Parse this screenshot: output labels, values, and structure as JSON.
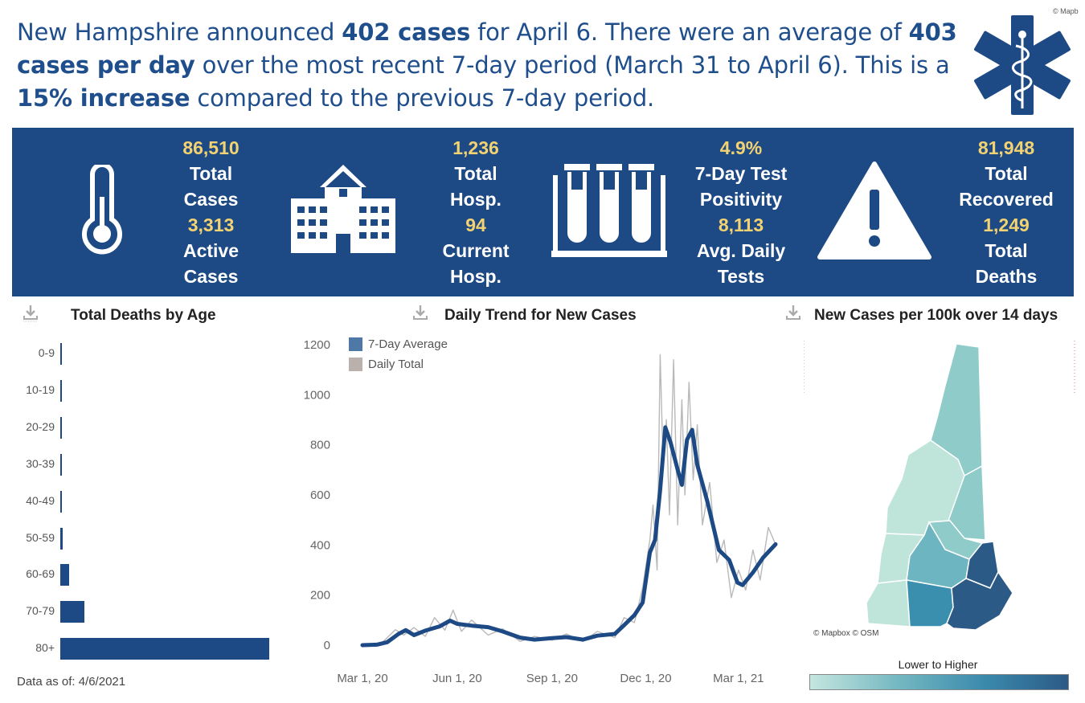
{
  "copyright": "© Mapb",
  "headline": {
    "p1": "New Hampshire announced ",
    "b1": "402 cases",
    "p2": " for April 6. There were an average of ",
    "b2": "403 cases per day",
    "p3": " over the most recent 7-day period (March 31 to April 6). This is a ",
    "b3": "15% increase",
    "p4": " compared to the previous 7-day period."
  },
  "icons": {
    "medical": "star-of-life-icon",
    "thermometer": "thermometer-icon",
    "hospital": "hospital-icon",
    "tubes": "test-tubes-icon",
    "warning": "warning-icon",
    "download": "download-icon"
  },
  "stats": {
    "total_cases": "86,510",
    "total_cases_label1": "Total",
    "total_cases_label2": "Cases",
    "active_cases": "3,313",
    "active_cases_label1": "Active",
    "active_cases_label2": "Cases",
    "total_hosp": "1,236",
    "total_hosp_label1": "Total",
    "total_hosp_label2": "Hosp.",
    "current_hosp": "94",
    "current_hosp_label1": "Current",
    "current_hosp_label2": "Hosp.",
    "positivity": "4.9%",
    "positivity_label1": "7-Day Test",
    "positivity_label2": "Positivity",
    "daily_tests": "8,113",
    "daily_tests_label1": "Avg. Daily",
    "daily_tests_label2": "Tests",
    "recovered": "81,948",
    "recovered_label1": "Total",
    "recovered_label2": "Recovered",
    "deaths": "1,249",
    "deaths_label1": "Total",
    "deaths_label2": "Deaths"
  },
  "colors": {
    "banner": "#1d4a85",
    "stat_number": "#f3d271",
    "headline": "#1f4e8c",
    "bar": "#1d4a85",
    "avg_line": "#1d4a85",
    "daily_line": "#b9b9b9"
  },
  "sections": {
    "deaths_by_age": "Total Deaths by Age",
    "daily_trend": "Daily Trend for New Cases",
    "cases_per_100k": "New Cases per 100k over 14 days"
  },
  "chart_data": [
    {
      "type": "bar",
      "title": "Total Deaths by Age",
      "categories": [
        "0-9",
        "10-19",
        "20-29",
        "30-39",
        "40-49",
        "50-59",
        "60-69",
        "70-79",
        "80+"
      ],
      "values": [
        0,
        0,
        0,
        1,
        4,
        12,
        46,
        124,
        1062
      ],
      "xlim": [
        0,
        1062
      ]
    },
    {
      "type": "line",
      "title": "Daily Trend for New Cases",
      "ylim": [
        0,
        1200
      ],
      "yticks": [
        "0",
        "200",
        "400",
        "600",
        "800",
        "1000",
        "1200"
      ],
      "xtick_labels": [
        "Mar 1, 20",
        "Jun 1, 20",
        "Sep 1, 20",
        "Dec 1, 20",
        "Mar 1, 21"
      ],
      "x_range": [
        "2020-03-01",
        "2021-04-06"
      ],
      "series": [
        {
          "name": "7-Day Average",
          "points": [
            [
              "2020-03-01",
              0
            ],
            [
              "2020-03-15",
              2
            ],
            [
              "2020-03-25",
              12
            ],
            [
              "2020-04-05",
              45
            ],
            [
              "2020-04-12",
              60
            ],
            [
              "2020-04-20",
              40
            ],
            [
              "2020-05-01",
              58
            ],
            [
              "2020-05-15",
              75
            ],
            [
              "2020-05-25",
              98
            ],
            [
              "2020-06-01",
              85
            ],
            [
              "2020-06-15",
              78
            ],
            [
              "2020-07-01",
              72
            ],
            [
              "2020-07-15",
              55
            ],
            [
              "2020-08-01",
              30
            ],
            [
              "2020-08-15",
              22
            ],
            [
              "2020-09-01",
              28
            ],
            [
              "2020-09-15",
              32
            ],
            [
              "2020-10-01",
              22
            ],
            [
              "2020-10-15",
              38
            ],
            [
              "2020-11-01",
              45
            ],
            [
              "2020-11-10",
              80
            ],
            [
              "2020-11-20",
              120
            ],
            [
              "2020-11-28",
              170
            ],
            [
              "2020-12-05",
              370
            ],
            [
              "2020-12-10",
              420
            ],
            [
              "2020-12-15",
              620
            ],
            [
              "2020-12-20",
              870
            ],
            [
              "2020-12-25",
              810
            ],
            [
              "2021-01-01",
              700
            ],
            [
              "2021-01-05",
              640
            ],
            [
              "2021-01-10",
              820
            ],
            [
              "2021-01-15",
              860
            ],
            [
              "2021-01-20",
              720
            ],
            [
              "2021-01-30",
              570
            ],
            [
              "2021-02-10",
              380
            ],
            [
              "2021-02-20",
              340
            ],
            [
              "2021-02-28",
              250
            ],
            [
              "2021-03-05",
              240
            ],
            [
              "2021-03-15",
              290
            ],
            [
              "2021-03-25",
              350
            ],
            [
              "2021-04-06",
              403
            ]
          ]
        },
        {
          "name": "Daily Total",
          "points": [
            [
              "2020-03-01",
              0
            ],
            [
              "2020-03-20",
              10
            ],
            [
              "2020-04-02",
              62
            ],
            [
              "2020-04-10",
              40
            ],
            [
              "2020-04-20",
              70
            ],
            [
              "2020-05-01",
              35
            ],
            [
              "2020-05-10",
              110
            ],
            [
              "2020-05-20",
              60
            ],
            [
              "2020-05-28",
              140
            ],
            [
              "2020-06-05",
              55
            ],
            [
              "2020-06-15",
              100
            ],
            [
              "2020-07-01",
              40
            ],
            [
              "2020-07-15",
              65
            ],
            [
              "2020-08-01",
              15
            ],
            [
              "2020-08-15",
              35
            ],
            [
              "2020-09-01",
              20
            ],
            [
              "2020-09-15",
              45
            ],
            [
              "2020-10-01",
              15
            ],
            [
              "2020-10-15",
              55
            ],
            [
              "2020-11-01",
              30
            ],
            [
              "2020-11-10",
              110
            ],
            [
              "2020-11-20",
              90
            ],
            [
              "2020-11-28",
              230
            ],
            [
              "2020-12-05",
              420
            ],
            [
              "2020-12-08",
              560
            ],
            [
              "2020-12-12",
              300
            ],
            [
              "2020-12-15",
              1160
            ],
            [
              "2020-12-18",
              700
            ],
            [
              "2020-12-21",
              900
            ],
            [
              "2020-12-24",
              520
            ],
            [
              "2020-12-28",
              1140
            ],
            [
              "2021-01-01",
              480
            ],
            [
              "2021-01-05",
              980
            ],
            [
              "2021-01-08",
              600
            ],
            [
              "2021-01-12",
              1050
            ],
            [
              "2021-01-16",
              660
            ],
            [
              "2021-01-20",
              880
            ],
            [
              "2021-01-25",
              480
            ],
            [
              "2021-02-01",
              650
            ],
            [
              "2021-02-08",
              330
            ],
            [
              "2021-02-15",
              420
            ],
            [
              "2021-02-22",
              190
            ],
            [
              "2021-03-01",
              300
            ],
            [
              "2021-03-08",
              220
            ],
            [
              "2021-03-15",
              380
            ],
            [
              "2021-03-22",
              260
            ],
            [
              "2021-03-30",
              470
            ],
            [
              "2021-04-06",
              402
            ]
          ]
        }
      ]
    }
  ],
  "map": {
    "attribution": "© Mapbox © OSM",
    "scale_label": "Lower to Higher",
    "scale_colors": [
      "#c5e6df",
      "#76b9c2",
      "#3b8bad",
      "#2b5a86"
    ]
  },
  "footer": {
    "data_as_of": "Data as of: 4/6/2021"
  }
}
